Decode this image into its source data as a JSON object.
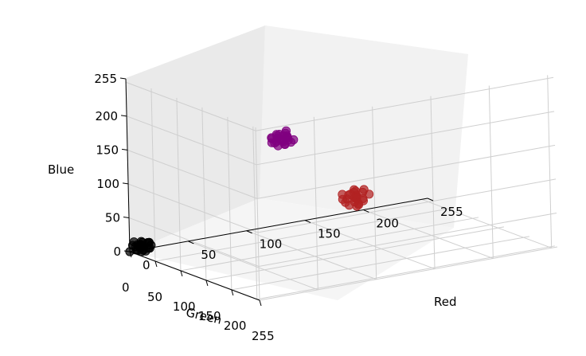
{
  "chart_data": {
    "type": "scatter",
    "projection": "3d",
    "title": "",
    "xlabel": "Red",
    "ylabel": "Green",
    "zlabel": "Blue",
    "xlim": [
      0,
      255
    ],
    "ylim": [
      0,
      255
    ],
    "zlim": [
      0,
      255
    ],
    "x_ticks": [
      "0",
      "50",
      "100",
      "150",
      "200",
      "255"
    ],
    "y_ticks": [
      "0",
      "50",
      "100",
      "150",
      "200",
      "255"
    ],
    "z_ticks": [
      "0",
      "50",
      "100",
      "150",
      "200",
      "255"
    ],
    "grid": true,
    "legend": "none",
    "series": [
      {
        "color": "#b22222",
        "points": [
          [
            178,
            34,
            34
          ],
          [
            183,
            39,
            42
          ],
          [
            172,
            30,
            28
          ],
          [
            181,
            26,
            39
          ],
          [
            175,
            41,
            31
          ],
          [
            186,
            33,
            27
          ],
          [
            170,
            38,
            36
          ],
          [
            180,
            29,
            44
          ],
          [
            177,
            44,
            29
          ],
          [
            184,
            24,
            33
          ],
          [
            173,
            35,
            25
          ],
          [
            188,
            40,
            38
          ],
          [
            169,
            31,
            41
          ],
          [
            179,
            36,
            22
          ],
          [
            182,
            28,
            30
          ],
          [
            176,
            43,
            37
          ],
          [
            185,
            37,
            45
          ],
          [
            171,
            27,
            32
          ],
          [
            174,
            32,
            39
          ],
          [
            187,
            30,
            29
          ],
          [
            178,
            42,
            26
          ],
          [
            183,
            25,
            40
          ],
          [
            172,
            40,
            43
          ],
          [
            180,
            33,
            35
          ]
        ]
      },
      {
        "color": "#000000",
        "points": [
          [
            0,
            0,
            0
          ],
          [
            7,
            5,
            10
          ],
          [
            3,
            9,
            4
          ],
          [
            10,
            3,
            7
          ],
          [
            5,
            12,
            2
          ],
          [
            12,
            8,
            12
          ],
          [
            2,
            4,
            15
          ],
          [
            8,
            1,
            5
          ],
          [
            14,
            10,
            8
          ],
          [
            4,
            14,
            11
          ],
          [
            9,
            6,
            1
          ],
          [
            1,
            11,
            6
          ],
          [
            11,
            13,
            14
          ],
          [
            6,
            2,
            9
          ],
          [
            13,
            7,
            3
          ],
          [
            3,
            15,
            13
          ],
          [
            15,
            4,
            10
          ],
          [
            5,
            10,
            7
          ],
          [
            8,
            13,
            2
          ],
          [
            10,
            0,
            12
          ],
          [
            2,
            7,
            9
          ],
          [
            12,
            12,
            5
          ],
          [
            7,
            9,
            14
          ],
          [
            0,
            6,
            11
          ]
        ]
      },
      {
        "color": "#800080",
        "points": [
          [
            128,
            0,
            128
          ],
          [
            133,
            5,
            135
          ],
          [
            122,
            3,
            124
          ],
          [
            131,
            8,
            120
          ],
          [
            125,
            10,
            131
          ],
          [
            136,
            2,
            127
          ],
          [
            120,
            7,
            133
          ],
          [
            129,
            12,
            122
          ],
          [
            134,
            4,
            138
          ],
          [
            123,
            1,
            129
          ],
          [
            138,
            9,
            125
          ],
          [
            126,
            6,
            119
          ],
          [
            131,
            13,
            132
          ],
          [
            121,
            11,
            126
          ],
          [
            135,
            3,
            130
          ],
          [
            127,
            14,
            136
          ],
          [
            132,
            0,
            123
          ],
          [
            124,
            8,
            137
          ],
          [
            137,
            6,
            121
          ],
          [
            129,
            2,
            134
          ],
          [
            122,
            12,
            128
          ],
          [
            133,
            10,
            126
          ],
          [
            126,
            4,
            133
          ],
          [
            130,
            7,
            124
          ]
        ]
      }
    ]
  }
}
